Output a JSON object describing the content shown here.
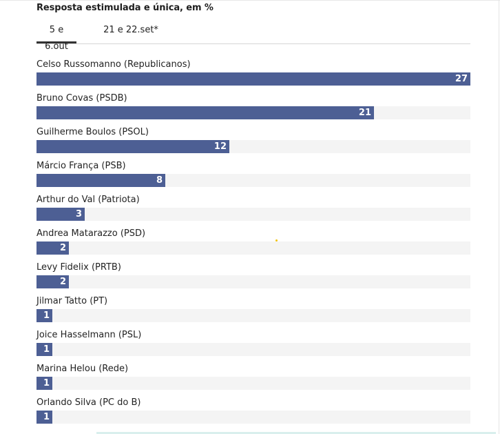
{
  "subtitle": "Resposta estimulada e única, em %",
  "tabs": [
    {
      "label": "5 e 6.out",
      "active": true
    },
    {
      "label": "21 e 22.set*",
      "active": false
    }
  ],
  "colors": {
    "bar": "#4d5f94",
    "track": "#f4f4f4"
  },
  "chart_data": {
    "type": "bar",
    "orientation": "horizontal",
    "categories": [
      "Celso Russomanno (Republicanos)",
      "Bruno Covas (PSDB)",
      "Guilherme Boulos (PSOL)",
      "Márcio França (PSB)",
      "Arthur do Val (Patriota)",
      "Andrea Matarazzo (PSD)",
      "Levy Fidelix (PRTB)",
      "Jilmar Tatto (PT)",
      "Joice Hasselmann (PSL)",
      "Marina Helou (Rede)",
      "Orlando Silva (PC do B)"
    ],
    "values": [
      27,
      21,
      12,
      8,
      3,
      2,
      2,
      1,
      1,
      1,
      1
    ],
    "xlim": [
      0,
      27
    ],
    "grid": false
  }
}
